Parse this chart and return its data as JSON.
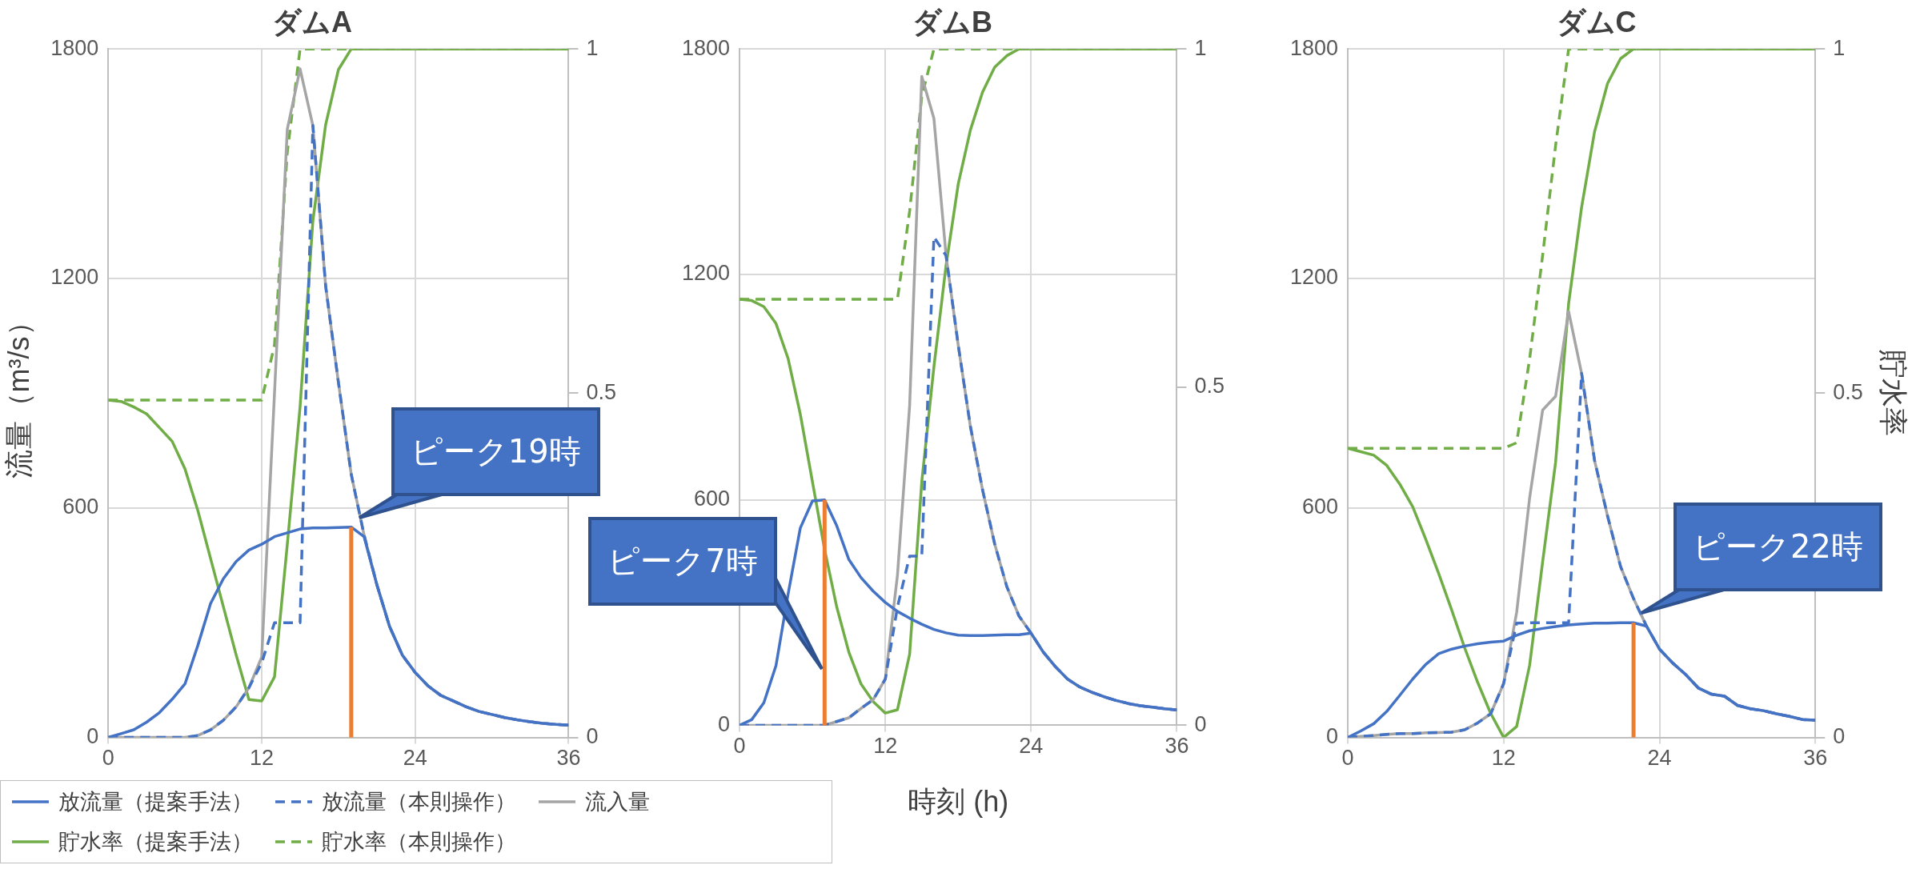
{
  "chart_data": [
    {
      "type": "line",
      "title": "ダムA",
      "ylabel": "流量（m³/s）",
      "x": [
        0,
        1,
        2,
        3,
        4,
        5,
        6,
        7,
        8,
        9,
        10,
        11,
        12,
        13,
        14,
        15,
        16,
        17,
        18,
        19,
        20,
        21,
        22,
        23,
        24,
        25,
        26,
        27,
        28,
        29,
        30,
        31,
        32,
        33,
        34,
        35,
        36
      ],
      "xlim": [
        0,
        36
      ],
      "xticks": [
        0,
        12,
        24,
        36
      ],
      "ylim": [
        0,
        1800
      ],
      "yticks": [
        0,
        600,
        1200,
        1800
      ],
      "y2lim": [
        0,
        1
      ],
      "y2ticks": [
        0,
        0.5,
        1
      ],
      "grid": true,
      "legend": "bottom left",
      "marker": "none",
      "series": [
        {
          "name": "放流量（提案手法）",
          "color": "#4472c4",
          "values": [
            0,
            10,
            20,
            40,
            65,
            100,
            140,
            240,
            350,
            415,
            460,
            490,
            505,
            525,
            535,
            545,
            548,
            548,
            549,
            550,
            525,
            400,
            290,
            215,
            170,
            135,
            110,
            95,
            80,
            68,
            60,
            52,
            46,
            41,
            37,
            34,
            32
          ]
        },
        {
          "name": "放流量（本則操作）",
          "color": "#4472c4",
          "line_style": "dashed",
          "values": [
            0,
            0,
            0,
            0,
            0,
            0,
            0,
            5,
            20,
            45,
            80,
            130,
            195,
            300,
            300,
            300,
            1600,
            1180,
            928,
            688,
            530,
            400,
            290,
            215,
            170,
            135,
            110,
            95,
            80,
            68,
            60,
            52,
            46,
            41,
            37,
            34,
            32
          ]
        },
        {
          "name": "流入量",
          "color": "#a5a5a5",
          "values": [
            0,
            0,
            0,
            0,
            0,
            0,
            0,
            5,
            20,
            45,
            80,
            130,
            210,
            900,
            1590,
            1748,
            1600,
            1180,
            928,
            688,
            530,
            400,
            290,
            215,
            170,
            135,
            110,
            95,
            80,
            68,
            60,
            52,
            46,
            41,
            37,
            34,
            32
          ]
        },
        {
          "name": "貯水率（提案手法）",
          "color": "#70ad47",
          "axis": "y2",
          "values": [
            0.49,
            0.488,
            0.48,
            0.47,
            0.45,
            0.43,
            0.39,
            0.33,
            0.26,
            0.19,
            0.12,
            0.055,
            0.053,
            0.088,
            0.28,
            0.48,
            0.75,
            0.89,
            0.97,
            1,
            1,
            1,
            1,
            1,
            1,
            1,
            1,
            1,
            1,
            1,
            1,
            1,
            1,
            1,
            1,
            1,
            1
          ]
        },
        {
          "name": "貯水率（本則操作）",
          "color": "#70ad47",
          "axis": "y2",
          "line_style": "dashed",
          "values": [
            0.49,
            0.49,
            0.49,
            0.49,
            0.49,
            0.49,
            0.49,
            0.49,
            0.49,
            0.49,
            0.49,
            0.49,
            0.49,
            0.57,
            0.85,
            1,
            1,
            1,
            1,
            1,
            1,
            1,
            1,
            1,
            1,
            1,
            1,
            1,
            1,
            1,
            1,
            1,
            1,
            1,
            1,
            1,
            1
          ]
        }
      ],
      "ref_lines": [
        {
          "axis": "x",
          "value": 19,
          "color": "#ed7d31"
        }
      ],
      "annotations": [
        {
          "text": "ピーク19時",
          "x": 19,
          "y": 550
        }
      ]
    },
    {
      "type": "line",
      "title": "ダムB",
      "xlabel": "時刻 (h)",
      "x": [
        0,
        1,
        2,
        3,
        4,
        5,
        6,
        7,
        8,
        9,
        10,
        11,
        12,
        13,
        14,
        15,
        16,
        17,
        18,
        19,
        20,
        21,
        22,
        23,
        24,
        25,
        26,
        27,
        28,
        29,
        30,
        31,
        32,
        33,
        34,
        35,
        36
      ],
      "xlim": [
        0,
        36
      ],
      "xticks": [
        0,
        12,
        24,
        36
      ],
      "ylim": [
        0,
        1800
      ],
      "yticks": [
        0,
        600,
        1200,
        1800
      ],
      "y2lim": [
        0,
        1
      ],
      "y2ticks": [
        0,
        0.5,
        1
      ],
      "grid": true,
      "marker": "none",
      "series": [
        {
          "color": "#4472c4",
          "values": [
            0,
            15,
            60,
            159,
            350,
            525,
            597,
            600,
            531,
            441,
            393,
            357,
            327,
            303,
            285,
            269,
            255,
            246,
            240,
            239,
            239,
            240,
            241,
            241,
            245,
            195,
            156,
            123,
            102,
            88,
            76,
            66,
            58,
            52,
            48,
            44,
            41
          ]
        },
        {
          "color": "#4472c4",
          "line_style": "dashed",
          "values": [
            0,
            0,
            0,
            0,
            0,
            0,
            0,
            0,
            10,
            20,
            45,
            68,
            123,
            315,
            450,
            450,
            1300,
            1250,
            1012,
            796,
            627,
            483,
            369,
            291,
            245,
            195,
            156,
            123,
            102,
            88,
            76,
            66,
            58,
            52,
            48,
            44,
            41
          ]
        },
        {
          "color": "#a5a5a5",
          "values": [
            0,
            0,
            0,
            0,
            0,
            0,
            0,
            0,
            10,
            20,
            45,
            68,
            123,
            400,
            850,
            1727,
            1615,
            1250,
            1012,
            796,
            627,
            483,
            369,
            291,
            245,
            195,
            156,
            123,
            102,
            88,
            76,
            66,
            58,
            52,
            48,
            44,
            41
          ]
        },
        {
          "color": "#70ad47",
          "axis": "y2",
          "values": [
            0.63,
            0.628,
            0.619,
            0.594,
            0.542,
            0.46,
            0.36,
            0.26,
            0.175,
            0.108,
            0.061,
            0.035,
            0.018,
            0.023,
            0.105,
            0.36,
            0.53,
            0.68,
            0.8,
            0.88,
            0.936,
            0.973,
            0.99,
            1,
            1,
            1,
            1,
            1,
            1,
            1,
            1,
            1,
            1,
            1,
            1,
            1,
            1
          ]
        },
        {
          "color": "#70ad47",
          "axis": "y2",
          "line_style": "dashed",
          "values": [
            0.63,
            0.63,
            0.63,
            0.63,
            0.63,
            0.63,
            0.63,
            0.63,
            0.63,
            0.63,
            0.63,
            0.63,
            0.63,
            0.63,
            0.76,
            0.93,
            1,
            1,
            1,
            1,
            1,
            1,
            1,
            1,
            1,
            1,
            1,
            1,
            1,
            1,
            1,
            1,
            1,
            1,
            1,
            1,
            1
          ]
        }
      ],
      "ref_lines": [
        {
          "axis": "x",
          "value": 7,
          "color": "#ed7d31"
        }
      ],
      "annotations": [
        "ピーク7時"
      ]
    },
    {
      "type": "line",
      "title": "ダムC",
      "y2label": "貯水率",
      "x": [
        0,
        1,
        2,
        3,
        4,
        5,
        6,
        7,
        8,
        9,
        10,
        11,
        12,
        13,
        14,
        15,
        16,
        17,
        18,
        19,
        20,
        21,
        22,
        23,
        24,
        25,
        26,
        27,
        28,
        29,
        30,
        31,
        32,
        33,
        34,
        35,
        36
      ],
      "xlim": [
        0,
        36
      ],
      "xticks": [
        0,
        12,
        24,
        36
      ],
      "ylim": [
        0,
        1800
      ],
      "yticks": [
        0,
        600,
        1200,
        1800
      ],
      "y2lim": [
        0,
        1
      ],
      "y2ticks": [
        0,
        0.5,
        1
      ],
      "grid": true,
      "marker": "none",
      "series": [
        {
          "color": "#4472c4",
          "values": [
            0,
            17,
            36,
            68,
            110,
            153,
            191,
            219,
            231,
            239,
            245,
            249,
            252,
            267,
            279,
            285,
            290,
            294,
            297,
            299,
            299,
            300,
            300,
            291,
            231,
            195,
            165,
            129,
            113,
            108,
            84,
            75,
            70,
            62,
            55,
            47,
            45
          ]
        },
        {
          "color": "#4472c4",
          "line_style": "dashed",
          "values": [
            0,
            3,
            5,
            8,
            10,
            10,
            12,
            13,
            14,
            20,
            38,
            62,
            141,
            299,
            300,
            300,
            300,
            300,
            952,
            724,
            579,
            447,
            363,
            291,
            231,
            195,
            165,
            129,
            113,
            108,
            84,
            75,
            70,
            62,
            55,
            47,
            45
          ]
        },
        {
          "color": "#a5a5a5",
          "values": [
            0,
            3,
            5,
            8,
            10,
            10,
            12,
            13,
            14,
            20,
            38,
            62,
            141,
            327,
            627,
            856,
            892,
            1114,
            952,
            724,
            579,
            447,
            363,
            291,
            231,
            195,
            165,
            129,
            113,
            108,
            84,
            75,
            70,
            62,
            55,
            47,
            45
          ]
        },
        {
          "color": "#70ad47",
          "axis": "y2",
          "values": [
            0.42,
            0.415,
            0.41,
            0.395,
            0.368,
            0.335,
            0.288,
            0.238,
            0.185,
            0.13,
            0.08,
            0.035,
            0,
            0.016,
            0.105,
            0.255,
            0.4,
            0.63,
            0.77,
            0.88,
            0.95,
            0.986,
            1,
            1,
            1,
            1,
            1,
            1,
            1,
            1,
            1,
            1,
            1,
            1,
            1,
            1,
            1
          ]
        },
        {
          "color": "#70ad47",
          "axis": "y2",
          "line_style": "dashed",
          "values": [
            0.42,
            0.42,
            0.42,
            0.42,
            0.42,
            0.42,
            0.42,
            0.42,
            0.42,
            0.42,
            0.42,
            0.42,
            0.42,
            0.428,
            0.55,
            0.7,
            0.86,
            1,
            1,
            1,
            1,
            1,
            1,
            1,
            1,
            1,
            1,
            1,
            1,
            1,
            1,
            1,
            1,
            1,
            1,
            1,
            1
          ]
        }
      ],
      "ref_lines": [
        {
          "axis": "x",
          "value": 22,
          "color": "#ed7d31"
        }
      ],
      "annotations": [
        {
          "text": "ピーク22時",
          "x": 22,
          "y": 300
        }
      ]
    }
  ]
}
